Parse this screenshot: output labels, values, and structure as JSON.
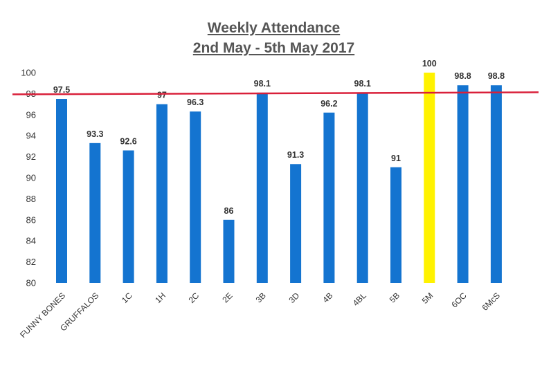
{
  "chart_data": {
    "type": "bar",
    "title": "Weekly Attendance",
    "subtitle": "2nd May - 5th May 2017",
    "categories": [
      "FUNNY BONES",
      "GRUFFALOS",
      "1C",
      "1H",
      "2C",
      "2E",
      "3B",
      "3D",
      "4B",
      "4BL",
      "5B",
      "5M",
      "6OC",
      "6McS"
    ],
    "values": [
      97.5,
      93.3,
      92.6,
      97,
      96.3,
      86,
      98.1,
      91.3,
      96.2,
      98.1,
      91,
      100,
      98.8,
      98.8
    ],
    "data_labels": [
      "97.5",
      "93.3",
      "92.6",
      "97",
      "96.3",
      "86",
      "98.1",
      "91.3",
      "96.2",
      "98.1",
      "91",
      "100",
      "98.8",
      "98.8"
    ],
    "yticks": [
      "80",
      "82",
      "84",
      "86",
      "88",
      "90",
      "92",
      "94",
      "96",
      "98",
      "100"
    ],
    "ylim": [
      80,
      100
    ],
    "xlabel": "",
    "ylabel": "",
    "grid": false,
    "legend": "none",
    "target_line": {
      "value": 97.9,
      "color": "#d9203a"
    },
    "bar_color": "#1474d0",
    "highlight_color": "#fff200",
    "highlight_category": "5M"
  }
}
